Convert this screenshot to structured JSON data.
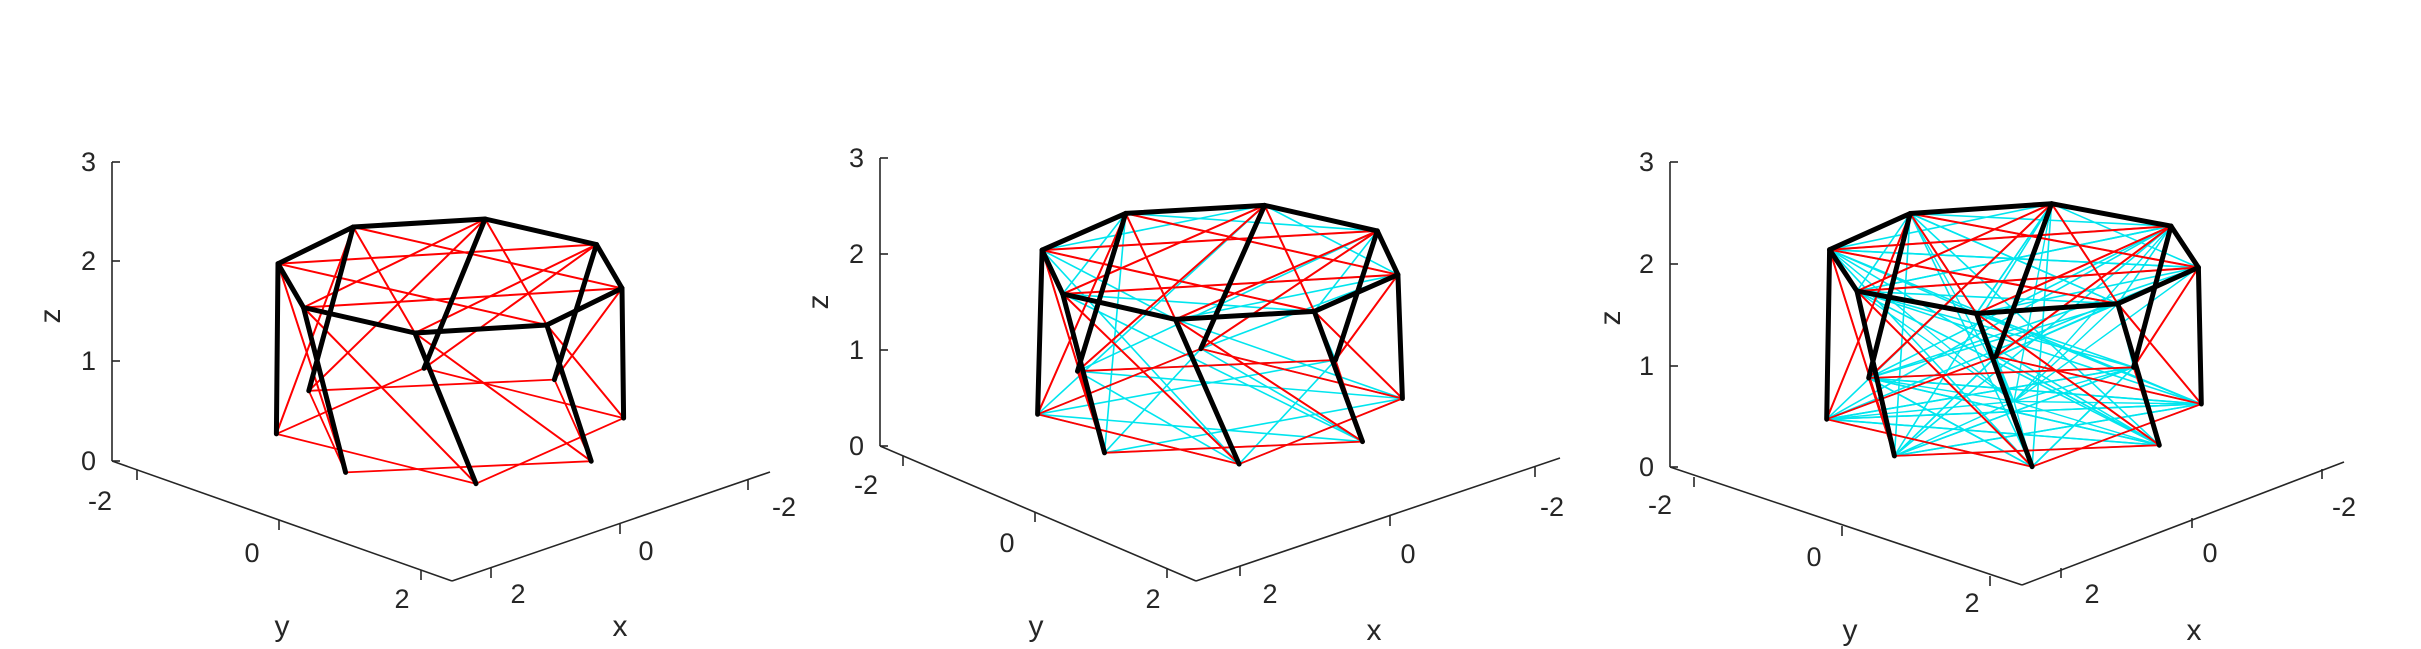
{
  "chart_data": [
    {
      "type": "3d-wireframe",
      "title": "",
      "xlabel": "x",
      "ylabel": "y",
      "zlabel": "z",
      "xticks": [
        "-2",
        "0",
        "2"
      ],
      "yticks": [
        "-2",
        "0",
        "2"
      ],
      "zticks": [
        "0",
        "1",
        "2",
        "3"
      ],
      "xlim": [
        -3,
        3
      ],
      "ylim": [
        -3,
        3
      ],
      "zlim": [
        0,
        3
      ],
      "grid": false,
      "structure": {
        "sides": 8,
        "radius": 2.5,
        "base_z": 0,
        "top_z": 1.5,
        "tilt": 1.0
      },
      "series": [
        {
          "role": "bars",
          "color": "#000000"
        },
        {
          "role": "strings",
          "color": "#ff0000"
        }
      ]
    },
    {
      "type": "3d-wireframe",
      "title": "",
      "xlabel": "x",
      "ylabel": "y",
      "zlabel": "z",
      "xticks": [
        "-2",
        "0",
        "2"
      ],
      "yticks": [
        "-2",
        "0",
        "2"
      ],
      "zticks": [
        "0",
        "1",
        "2",
        "3"
      ],
      "xlim": [
        -3,
        3
      ],
      "ylim": [
        -3,
        3
      ],
      "zlim": [
        0,
        3
      ],
      "grid": false,
      "structure": {
        "sides": 8,
        "radius": 2.5,
        "base_z": 0.1,
        "top_z": 1.6,
        "tilt": 1.0
      },
      "series": [
        {
          "role": "bars",
          "color": "#000000"
        },
        {
          "role": "strings",
          "color": "#ff0000"
        },
        {
          "role": "added-strings",
          "color": "#00e5ee"
        }
      ]
    },
    {
      "type": "3d-wireframe",
      "title": "",
      "xlabel": "x",
      "ylabel": "y",
      "zlabel": "z",
      "xticks": [
        "-2",
        "0",
        "2"
      ],
      "yticks": [
        "-2",
        "0",
        "2"
      ],
      "zticks": [
        "0",
        "1",
        "2",
        "3"
      ],
      "xlim": [
        -3,
        3
      ],
      "ylim": [
        -3,
        3
      ],
      "zlim": [
        0,
        3
      ],
      "grid": false,
      "structure": {
        "sides": 8,
        "radius": 2.5,
        "base_z": 0.2,
        "top_z": 1.7,
        "tilt": 0.85
      },
      "series": [
        {
          "role": "bars",
          "color": "#000000"
        },
        {
          "role": "strings",
          "color": "#ff0000"
        },
        {
          "role": "added-strings",
          "color": "#00e5ee"
        }
      ]
    }
  ]
}
